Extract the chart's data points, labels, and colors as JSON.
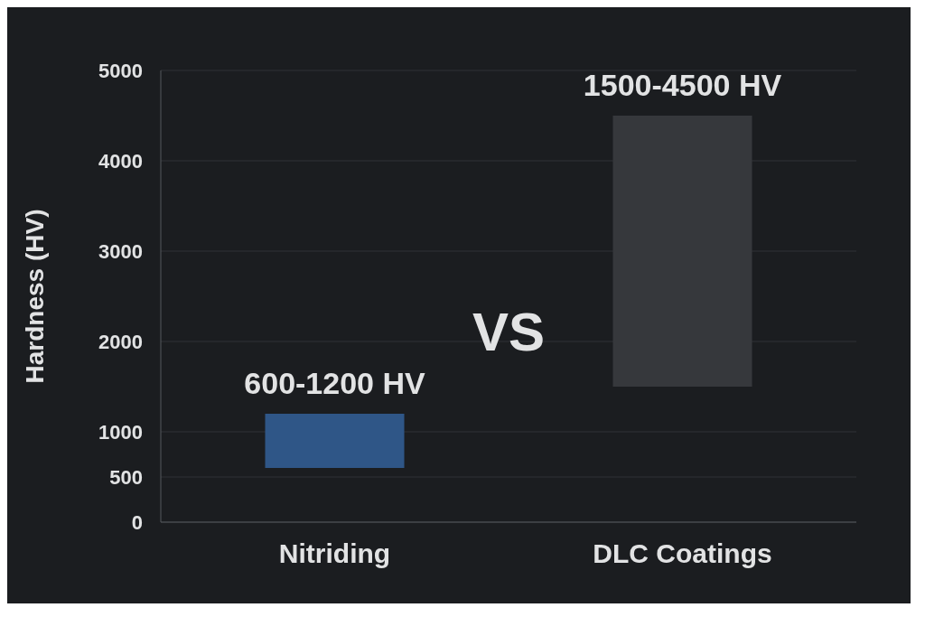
{
  "chart_data": {
    "type": "bar",
    "categories": [
      "Nitriding",
      "DLC Coatings"
    ],
    "base": [
      600,
      1500
    ],
    "values": [
      600,
      3000
    ],
    "colors": [
      "#2f5687",
      "#36383c"
    ],
    "value_labels": [
      "600-1200 HV",
      "1500-4500 HV"
    ],
    "ylabel": "Hardness (HV)",
    "ylim": [
      0,
      5000
    ],
    "yticks": [
      0,
      500,
      1000,
      2000,
      3000,
      4000,
      5000
    ],
    "grid": "y",
    "annotations": [
      "VS"
    ]
  }
}
